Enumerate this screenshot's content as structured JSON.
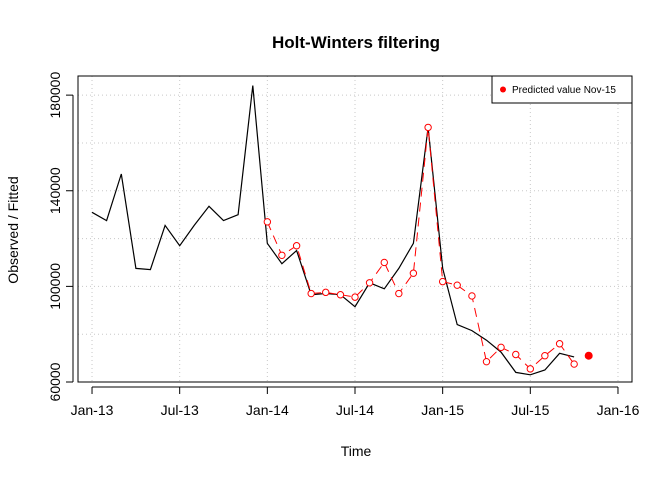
{
  "chart_data": {
    "type": "line",
    "title": "Holt-Winters filtering",
    "xlabel": "Time",
    "ylabel": "Observed / Fitted",
    "xlim": [
      2012.92,
      2016.08
    ],
    "ylim": [
      60000,
      188000
    ],
    "grid": true,
    "x_ticks": [
      {
        "value": 2013.0,
        "label": "Jan-13"
      },
      {
        "value": 2013.5,
        "label": "Jul-13"
      },
      {
        "value": 2014.0,
        "label": "Jan-14"
      },
      {
        "value": 2014.5,
        "label": "Jul-14"
      },
      {
        "value": 2015.0,
        "label": "Jan-15"
      },
      {
        "value": 2015.5,
        "label": "Jul-15"
      },
      {
        "value": 2016.0,
        "label": "Jan-16"
      }
    ],
    "y_ticks": [
      {
        "value": 60000,
        "label": "60000"
      },
      {
        "value": 100000,
        "label": "100000"
      },
      {
        "value": 140000,
        "label": "140000"
      },
      {
        "value": 180000,
        "label": "180000"
      }
    ],
    "observed": {
      "color": "#000000",
      "x": [
        2013.0,
        2013.083,
        2013.167,
        2013.25,
        2013.333,
        2013.417,
        2013.5,
        2013.583,
        2013.667,
        2013.75,
        2013.833,
        2013.917,
        2014.0,
        2014.083,
        2014.167,
        2014.25,
        2014.333,
        2014.417,
        2014.5,
        2014.583,
        2014.667,
        2014.75,
        2014.833,
        2014.917,
        2015.0,
        2015.083,
        2015.167,
        2015.25,
        2015.333,
        2015.417,
        2015.5,
        2015.583,
        2015.667,
        2015.75
      ],
      "y": [
        131000,
        127500,
        147000,
        107500,
        107000,
        125500,
        117000,
        125500,
        133500,
        127500,
        130000,
        184000,
        118000,
        109500,
        115000,
        96500,
        97000,
        96500,
        91500,
        101500,
        99000,
        107500,
        118000,
        166500,
        107500,
        84000,
        81500,
        77500,
        72500,
        64000,
        63000,
        65000,
        72000,
        70500
      ]
    },
    "fitted": {
      "color": "#ff0000",
      "x": [
        2014.0,
        2014.083,
        2014.167,
        2014.25,
        2014.333,
        2014.417,
        2014.5,
        2014.583,
        2014.667,
        2014.75,
        2014.833,
        2014.917,
        2015.0,
        2015.083,
        2015.167,
        2015.25,
        2015.333,
        2015.417,
        2015.5,
        2015.583,
        2015.667,
        2015.75
      ],
      "y": [
        127000,
        113000,
        117000,
        97000,
        97500,
        96500,
        95500,
        101500,
        110000,
        97000,
        105500,
        166500,
        102000,
        100500,
        96000,
        68500,
        74500,
        71500,
        65500,
        71000,
        76000,
        67500
      ]
    },
    "predicted": {
      "label": "Predicted value Nov-15",
      "x": 2015.833,
      "y": 71000,
      "color": "#ff0000"
    },
    "legend_position": "top-right"
  }
}
